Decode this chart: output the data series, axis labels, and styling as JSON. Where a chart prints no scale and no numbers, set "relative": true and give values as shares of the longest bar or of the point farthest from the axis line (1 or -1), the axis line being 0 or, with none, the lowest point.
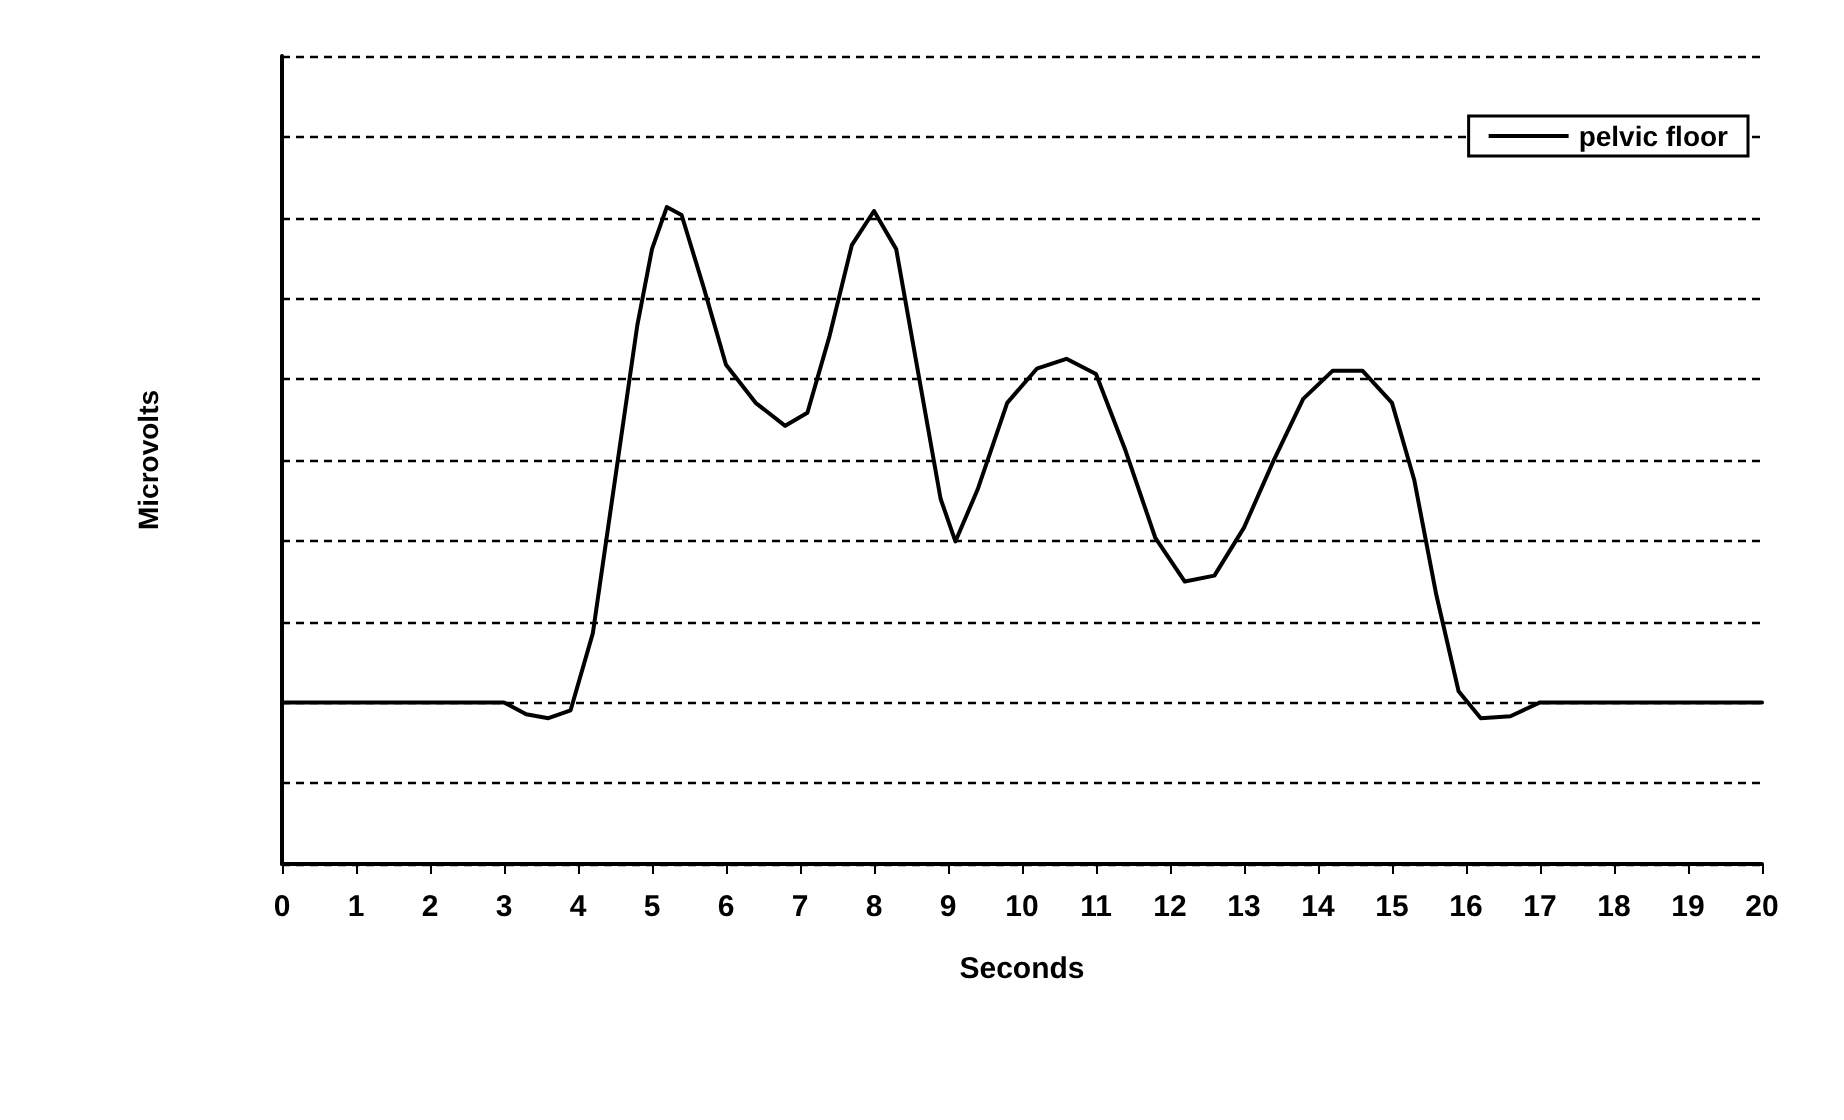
{
  "chart_data": {
    "type": "line",
    "xlabel": "Seconds",
    "ylabel": "Microvolts",
    "relative": true,
    "xlim": [
      0,
      20
    ],
    "xticks": [
      0,
      1,
      2,
      3,
      4,
      5,
      6,
      7,
      8,
      9,
      10,
      11,
      12,
      13,
      14,
      15,
      16,
      17,
      18,
      19,
      20
    ],
    "grid": "y",
    "legend": "top right",
    "marker": "none",
    "line_style": "solid",
    "series": [
      {
        "name": "pelvic floor",
        "color": "#000000",
        "x": [
          0,
          3,
          3.3,
          3.6,
          3.9,
          4.2,
          4.5,
          4.8,
          5.0,
          5.2,
          5.4,
          5.7,
          6.0,
          6.4,
          6.8,
          7.1,
          7.4,
          7.7,
          8.0,
          8.3,
          8.6,
          8.9,
          9.1,
          9.4,
          9.8,
          10.2,
          10.6,
          11.0,
          11.4,
          11.8,
          12.2,
          12.6,
          13.0,
          13.4,
          13.8,
          14.2,
          14.6,
          15.0,
          15.3,
          15.6,
          15.9,
          16.2,
          16.6,
          17.0,
          20
        ],
        "values": [
          0.246,
          0.246,
          0.228,
          0.222,
          0.234,
          0.351,
          0.585,
          0.819,
          0.936,
          1.0,
          0.988,
          0.877,
          0.76,
          0.702,
          0.667,
          0.687,
          0.804,
          0.942,
          0.994,
          0.936,
          0.746,
          0.556,
          0.491,
          0.57,
          0.702,
          0.754,
          0.769,
          0.746,
          0.629,
          0.497,
          0.43,
          0.439,
          0.512,
          0.614,
          0.708,
          0.751,
          0.751,
          0.702,
          0.585,
          0.409,
          0.263,
          0.222,
          0.225,
          0.246,
          0.246
        ]
      }
    ]
  }
}
